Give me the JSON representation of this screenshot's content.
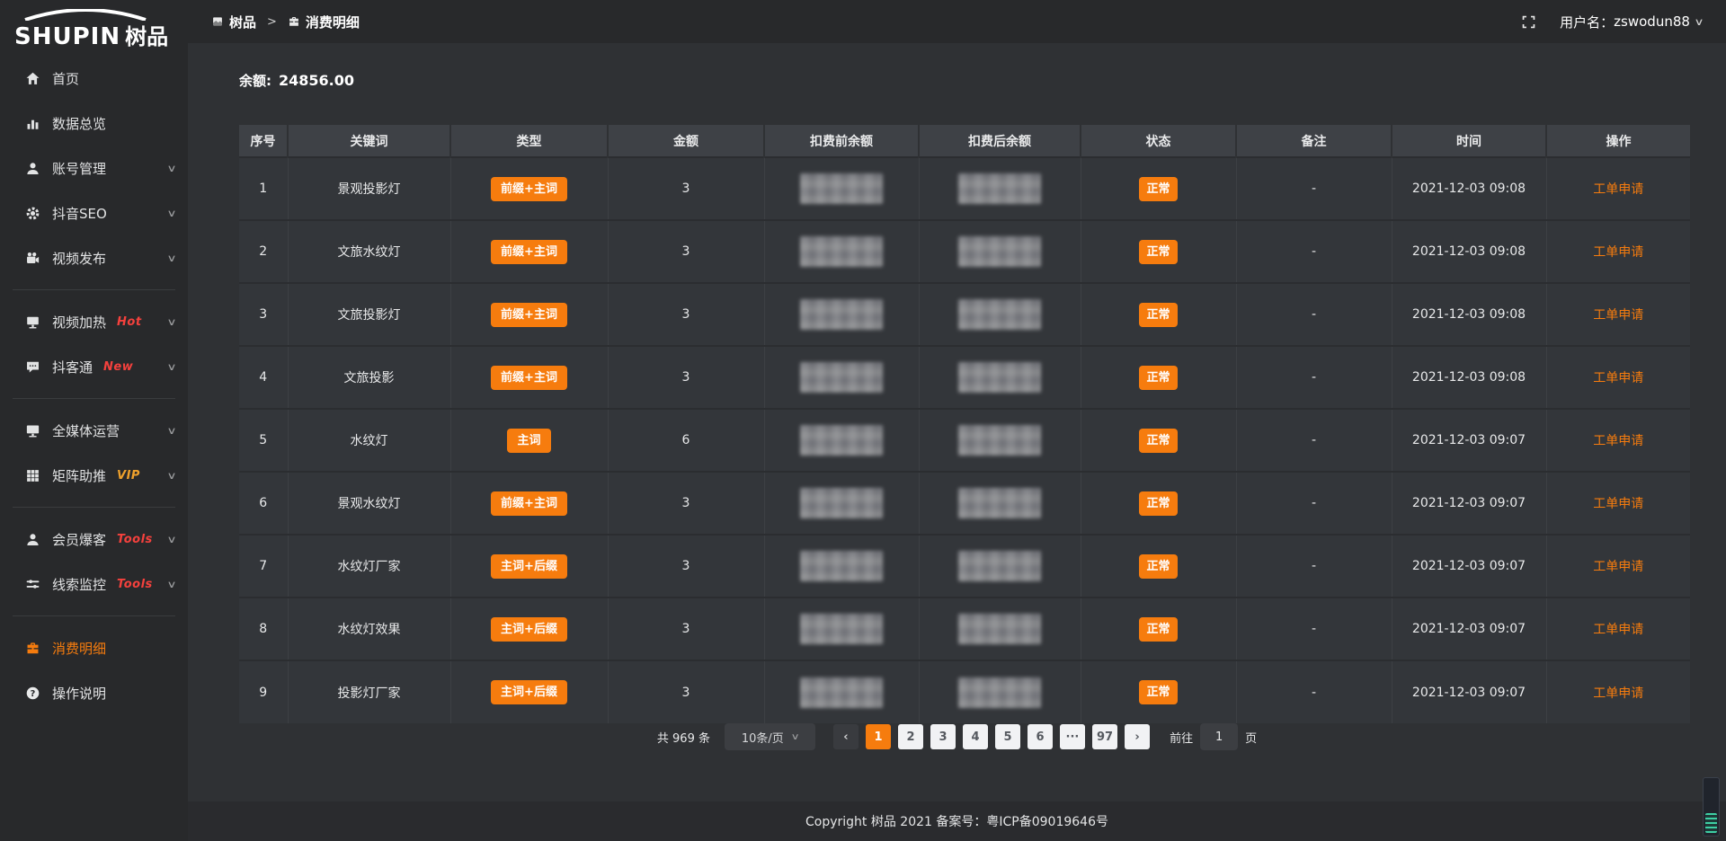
{
  "app": {
    "logo_en": "SHUPIN",
    "logo_cn": "树品"
  },
  "colors": {
    "accent": "#f67c0e",
    "hot_tag": "#f5413d",
    "new_tag": "#f5413d",
    "vip_tag": "#efa12c",
    "tools_tag": "#f5413d"
  },
  "topbar": {
    "breadcrumb_root": "树品",
    "separator": ">",
    "current": "消费明细",
    "username_label": "用户名：",
    "username": "zswodun88",
    "chevron": "∨",
    "fullscreen_icon": "fullscreen-icon"
  },
  "sidebar": {
    "items": [
      {
        "id": "home",
        "label": "首页",
        "icon": "home-icon",
        "chevron": false
      },
      {
        "id": "data-overview",
        "label": "数据总览",
        "icon": "chart-icon",
        "chevron": false
      },
      {
        "id": "account-management",
        "label": "账号管理",
        "icon": "user-icon",
        "chevron": true
      },
      {
        "id": "douyin-seo",
        "label": "抖音SEO",
        "icon": "gear-icon",
        "chevron": true
      },
      {
        "id": "video-publish",
        "label": "视频发布",
        "icon": "camera-icon",
        "chevron": true,
        "divider_after": true
      },
      {
        "id": "video-heat",
        "label": "视频加热",
        "icon": "screen-icon",
        "chevron": true,
        "tag": "Hot",
        "tag_color": "#f5413d"
      },
      {
        "id": "doukotong",
        "label": "抖客通",
        "icon": "chat-icon",
        "chevron": true,
        "tag": "New",
        "tag_color": "#f5413d",
        "divider_after": true
      },
      {
        "id": "all-media-operation",
        "label": "全媒体运营",
        "icon": "monitor-icon",
        "chevron": true
      },
      {
        "id": "matrix-boost",
        "label": "矩阵助推",
        "icon": "grid-icon",
        "chevron": true,
        "tag": "VIP",
        "tag_color": "#efa12c",
        "divider_after": true
      },
      {
        "id": "member-burst",
        "label": "会员爆客",
        "icon": "member-icon",
        "chevron": true,
        "tag": "Tools",
        "tag_color": "#f5413d"
      },
      {
        "id": "clue-monitor",
        "label": "线索监控",
        "icon": "sliders-icon",
        "chevron": true,
        "tag": "Tools",
        "tag_color": "#f5413d",
        "divider_after": true
      },
      {
        "id": "consumption-detail",
        "label": "消费明细",
        "icon": "wallet-icon",
        "chevron": false,
        "active": true
      },
      {
        "id": "operation-guide",
        "label": "操作说明",
        "icon": "help-icon",
        "chevron": false
      }
    ]
  },
  "balance": {
    "label": "余额:",
    "value": "24856.00"
  },
  "table": {
    "columns": [
      "序号",
      "关键词",
      "类型",
      "金额",
      "扣费前余额",
      "扣费后余额",
      "状态",
      "备注",
      "时间",
      "操作"
    ],
    "rows": [
      {
        "no": "1",
        "keyword": "景观投影灯",
        "type": "前缀+主词",
        "amount": "3",
        "pre_balance_redacted": true,
        "post_balance_redacted": true,
        "status": "正常",
        "remark": "-",
        "time": "2021-12-03 09:08",
        "action": "工单申请"
      },
      {
        "no": "2",
        "keyword": "文旅水纹灯",
        "type": "前缀+主词",
        "amount": "3",
        "pre_balance_redacted": true,
        "post_balance_redacted": true,
        "status": "正常",
        "remark": "-",
        "time": "2021-12-03 09:08",
        "action": "工单申请"
      },
      {
        "no": "3",
        "keyword": "文旅投影灯",
        "type": "前缀+主词",
        "amount": "3",
        "pre_balance_redacted": true,
        "post_balance_redacted": true,
        "status": "正常",
        "remark": "-",
        "time": "2021-12-03 09:08",
        "action": "工单申请"
      },
      {
        "no": "4",
        "keyword": "文旅投影",
        "type": "前缀+主词",
        "amount": "3",
        "pre_balance_redacted": true,
        "post_balance_redacted": true,
        "status": "正常",
        "remark": "-",
        "time": "2021-12-03 09:08",
        "action": "工单申请"
      },
      {
        "no": "5",
        "keyword": "水纹灯",
        "type": "主词",
        "amount": "6",
        "pre_balance_redacted": true,
        "post_balance_redacted": true,
        "status": "正常",
        "remark": "-",
        "time": "2021-12-03 09:07",
        "action": "工单申请"
      },
      {
        "no": "6",
        "keyword": "景观水纹灯",
        "type": "前缀+主词",
        "amount": "3",
        "pre_balance_redacted": true,
        "post_balance_redacted": true,
        "status": "正常",
        "remark": "-",
        "time": "2021-12-03 09:07",
        "action": "工单申请"
      },
      {
        "no": "7",
        "keyword": "水纹灯厂家",
        "type": "主词+后缀",
        "amount": "3",
        "pre_balance_redacted": true,
        "post_balance_redacted": true,
        "status": "正常",
        "remark": "-",
        "time": "2021-12-03 09:07",
        "action": "工单申请"
      },
      {
        "no": "8",
        "keyword": "水纹灯效果",
        "type": "主词+后缀",
        "amount": "3",
        "pre_balance_redacted": true,
        "post_balance_redacted": true,
        "status": "正常",
        "remark": "-",
        "time": "2021-12-03 09:07",
        "action": "工单申请"
      },
      {
        "no": "9",
        "keyword": "投影灯厂家",
        "type": "主词+后缀",
        "amount": "3",
        "pre_balance_redacted": true,
        "post_balance_redacted": true,
        "status": "正常",
        "remark": "-",
        "time": "2021-12-03 09:07",
        "action": "工单申请"
      }
    ]
  },
  "pagination": {
    "total": "共 969 条",
    "page_size": "10条/页",
    "prev_label": "‹",
    "next_label": "›",
    "pages": [
      "1",
      "2",
      "3",
      "4",
      "5",
      "6",
      "···",
      "97"
    ],
    "active_page": "1",
    "goto_label": "前往",
    "goto_value": "1",
    "goto_unit": "页"
  },
  "footer": {
    "copyright": "Copyright 树品 2021 备案号：粤ICP备09019646号"
  }
}
